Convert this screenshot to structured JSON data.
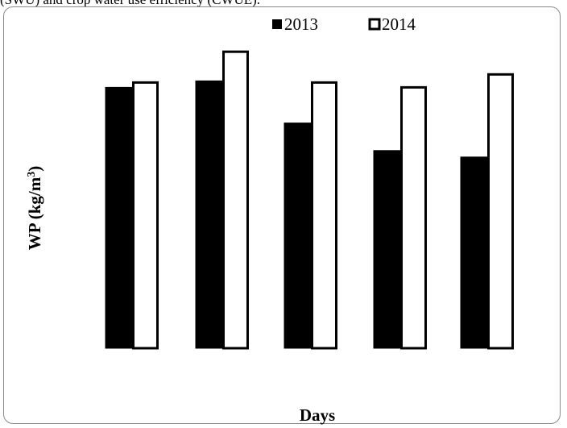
{
  "caption_fragment": "(SWU) and crop water use efficiency (CWUE).",
  "chart_data": {
    "type": "bar",
    "title": "",
    "xlabel": "Days",
    "ylabel": "WP (kg/m",
    "ylabel_superscript": "3",
    "ylabel_suffix": ")",
    "categories": [
      "",
      "",
      "",
      "",
      ""
    ],
    "series": [
      {
        "name": "2013",
        "values": [
          1.61,
          1.65,
          1.39,
          1.22,
          1.18
        ],
        "fill": "#000000"
      },
      {
        "name": "2014",
        "values": [
          1.64,
          1.83,
          1.64,
          1.61,
          1.69
        ],
        "fill": "#ffffff"
      }
    ],
    "ylim": [
      0,
      2
    ],
    "grid": false,
    "legend_position": "top-center"
  }
}
